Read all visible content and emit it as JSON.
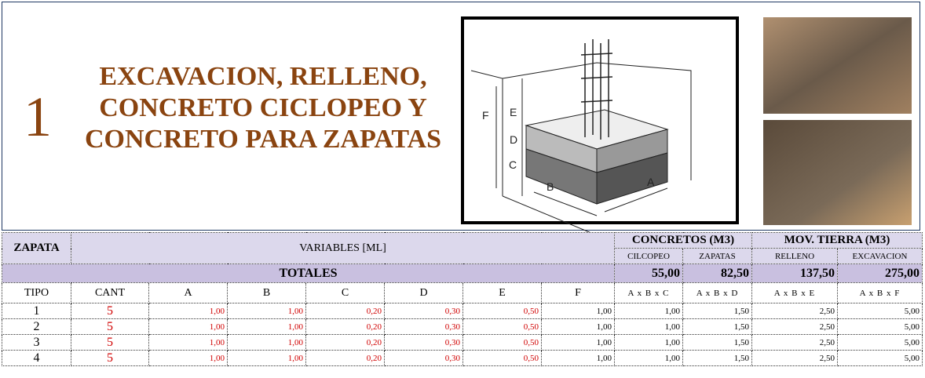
{
  "header": {
    "number": "1",
    "title": [
      "EXCAVACION, RELLENO,",
      "CONCRETO CICLOPEO Y",
      "CONCRETO PARA ZAPATAS"
    ]
  },
  "sketch": {
    "labels": [
      "E",
      "F",
      "D",
      "C",
      "B",
      "A"
    ]
  },
  "table": {
    "group_headers": {
      "zapata": "ZAPATA",
      "variables": "VARIABLES [ML]",
      "concretos": "CONCRETOS (M3)",
      "mov_tierra": "MOV. TIERRA (M3)"
    },
    "sub_headers": [
      "CILCOPEO",
      "ZAPATAS",
      "RELLENO",
      "EXCAVACION"
    ],
    "totals_label": "TOTALES",
    "totals": [
      "55,00",
      "82,50",
      "137,50",
      "275,00"
    ],
    "columns": [
      "TIPO",
      "CANT",
      "A",
      "B",
      "C",
      "D",
      "E",
      "F",
      "A x B x C",
      "A x B x D",
      "A x B x E",
      "A x B x F"
    ],
    "rows": [
      [
        "1",
        "5",
        "1,00",
        "1,00",
        "0,20",
        "0,30",
        "0,50",
        "1,00",
        "1,00",
        "1,50",
        "2,50",
        "5,00"
      ],
      [
        "2",
        "5",
        "1,00",
        "1,00",
        "0,20",
        "0,30",
        "0,50",
        "1,00",
        "1,00",
        "1,50",
        "2,50",
        "5,00"
      ],
      [
        "3",
        "5",
        "1,00",
        "1,00",
        "0,20",
        "0,30",
        "0,50",
        "1,00",
        "1,00",
        "1,50",
        "2,50",
        "5,00"
      ],
      [
        "4",
        "5",
        "1,00",
        "1,00",
        "0,20",
        "0,30",
        "0,50",
        "1,00",
        "1,00",
        "1,50",
        "2,50",
        "5,00"
      ]
    ]
  }
}
